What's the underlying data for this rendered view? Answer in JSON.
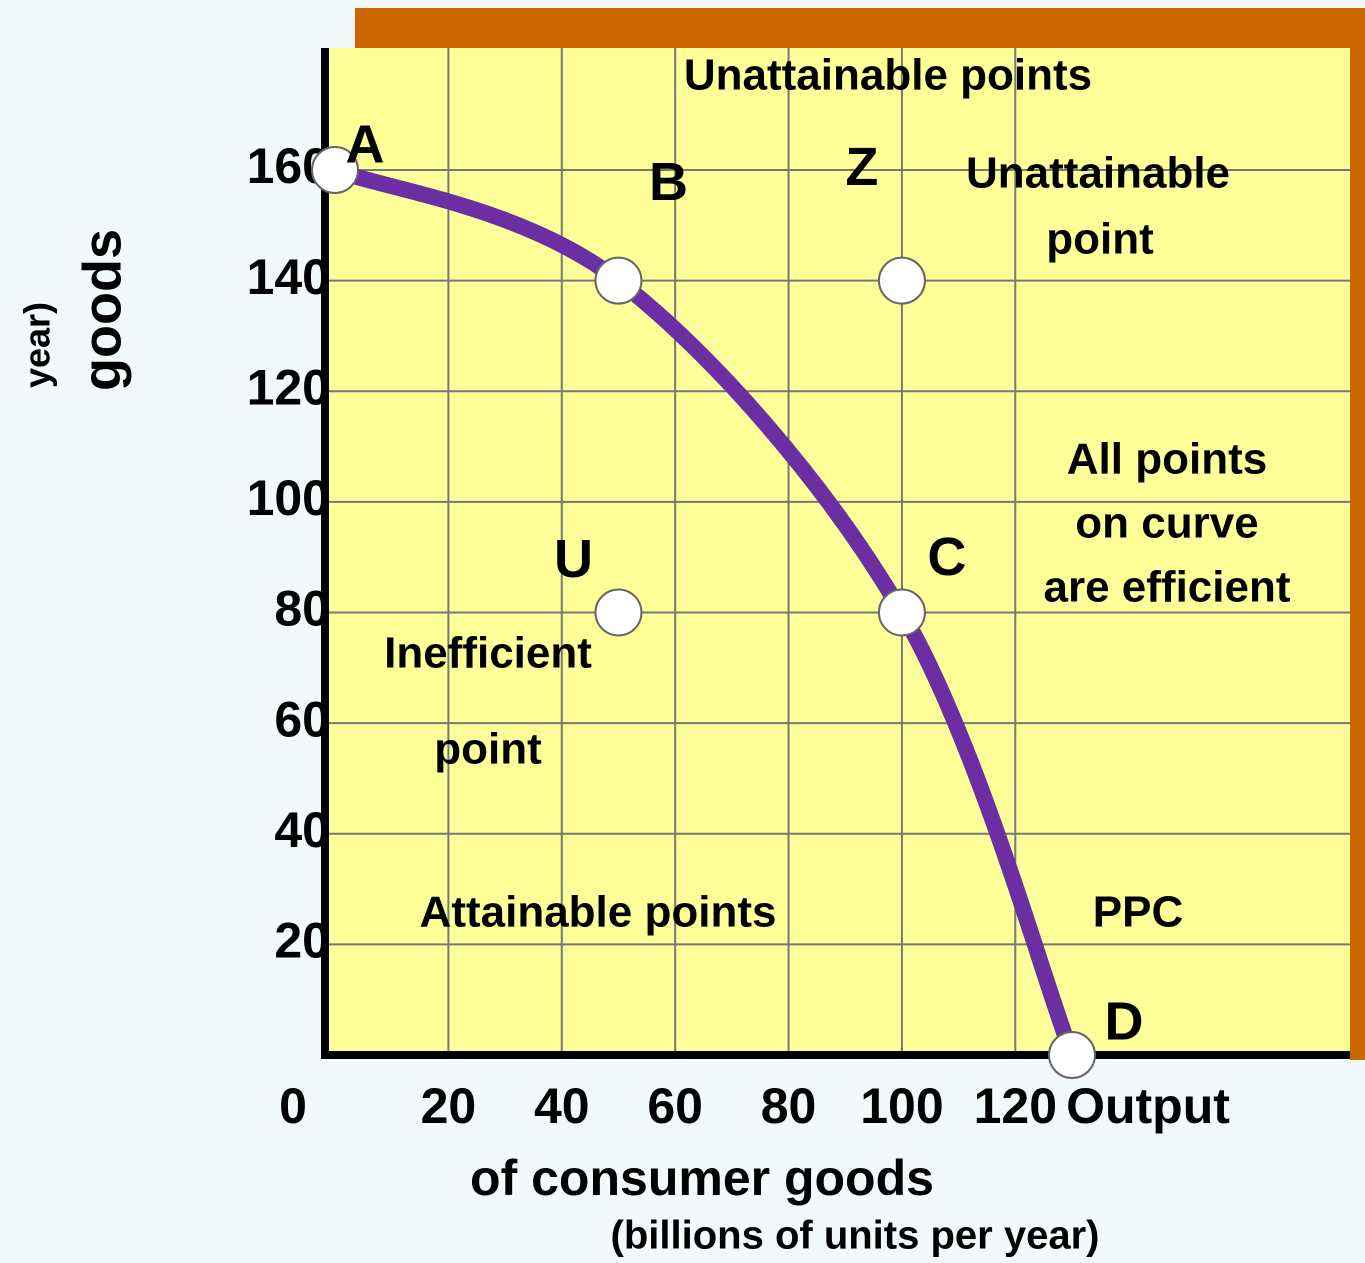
{
  "chart_data": {
    "type": "line",
    "x": [
      0,
      50,
      100,
      130
    ],
    "values": [
      160,
      140,
      80,
      0
    ],
    "point_labels": [
      "A",
      "B",
      "C",
      "D"
    ],
    "color": "#6b2fa3",
    "other_points": [
      {
        "label": "Z",
        "x": 100,
        "y": 140
      },
      {
        "label": "U",
        "x": 50,
        "y": 80
      }
    ],
    "xlim": [
      0,
      130
    ],
    "ylim": [
      0,
      160
    ],
    "xticks": [
      0,
      20,
      40,
      60,
      80,
      100,
      120
    ],
    "yticks": [
      20,
      40,
      60,
      80,
      100,
      120,
      140,
      160
    ],
    "grid": true,
    "x_label": [
      "Output",
      "of consumer goods"
    ],
    "x_sublabel": "(billions of units per year)",
    "y_label": [
      "year)",
      "goods"
    ],
    "annotations": [
      {
        "lines": [
          "Unattainable points"
        ]
      },
      {
        "lines": [
          "Unattainable",
          "point"
        ]
      },
      {
        "lines": [
          "All points",
          "on curve",
          "are efficient"
        ]
      },
      {
        "lines": [
          "Inefficient",
          "point"
        ]
      },
      {
        "lines": [
          "Attainable points"
        ]
      },
      {
        "lines": [
          "PPC"
        ]
      }
    ]
  }
}
